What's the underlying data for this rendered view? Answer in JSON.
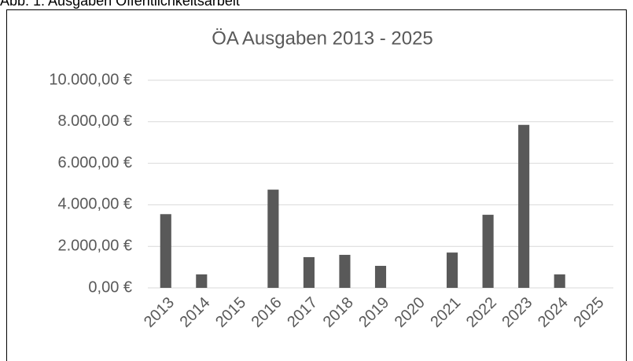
{
  "caption": "Abb. 1: Ausgaben Öffentlichkeitsarbeit",
  "chart_data": {
    "type": "bar",
    "title": "ÖA Ausgaben 2013 - 2025",
    "categories": [
      "2013",
      "2014",
      "2015",
      "2016",
      "2017",
      "2018",
      "2019",
      "2020",
      "2021",
      "2022",
      "2023",
      "2024",
      "2025"
    ],
    "values": [
      3550,
      650,
      0,
      4730,
      1480,
      1590,
      1060,
      0,
      1700,
      3520,
      7850,
      650,
      0
    ],
    "color": "#595959",
    "ylim": [
      0,
      10000
    ],
    "yticks": [
      {
        "value": 0,
        "label": "0,00 €"
      },
      {
        "value": 2000,
        "label": "2.000,00 €"
      },
      {
        "value": 4000,
        "label": "4.000,00 €"
      },
      {
        "value": 6000,
        "label": "6.000,00 €"
      },
      {
        "value": 8000,
        "label": "8.000,00 €"
      },
      {
        "value": 10000,
        "label": "10.000,00 €"
      }
    ],
    "grid": true
  }
}
